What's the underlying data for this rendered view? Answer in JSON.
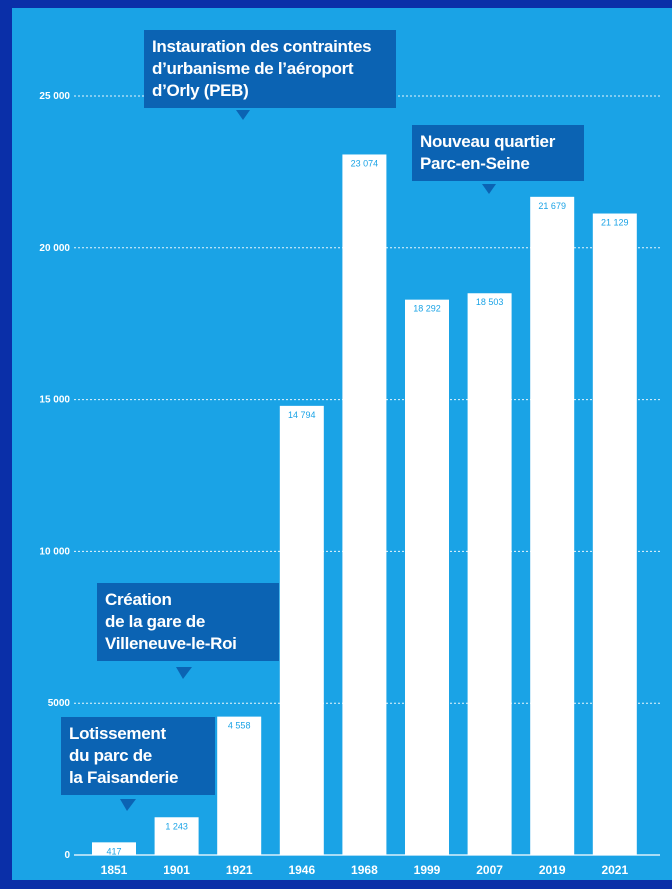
{
  "chart_data": {
    "type": "bar",
    "categories": [
      "1851",
      "1901",
      "1921",
      "1946",
      "1968",
      "1999",
      "2007",
      "2019",
      "2021"
    ],
    "values": [
      417,
      1243,
      4558,
      14794,
      23074,
      18292,
      18503,
      21679,
      21129
    ],
    "value_labels": [
      "417",
      "1 243",
      "4 558",
      "14 794",
      "23 074",
      "18 292",
      "18 503",
      "21 679",
      "21 129"
    ],
    "yticks": [
      0,
      5000,
      10000,
      15000,
      20000,
      25000
    ],
    "ytick_labels": [
      "0",
      "5000",
      "10 000",
      "15 000",
      "20 000",
      "25 000"
    ],
    "ylim": [
      0,
      25000
    ],
    "grid": true,
    "colors": {
      "background": "#1aa3e6",
      "frame": "#0a2fa8",
      "bar": "#ffffff",
      "callout": "#0b63b3",
      "text": "#ffffff"
    },
    "annotations": [
      {
        "id": "peb",
        "text": "Instauration des contraintes\nd’urbanisme de l’aéroport\nd’Orly (PEB)"
      },
      {
        "id": "parc",
        "text": "Nouveau quartier\nParc-en-Seine"
      },
      {
        "id": "gare",
        "text": "Création\nde la gare de\nVilleneuve-le-Roi"
      },
      {
        "id": "faisanderie",
        "text": "Lotissement\ndu parc de\nla Faisanderie"
      }
    ]
  }
}
